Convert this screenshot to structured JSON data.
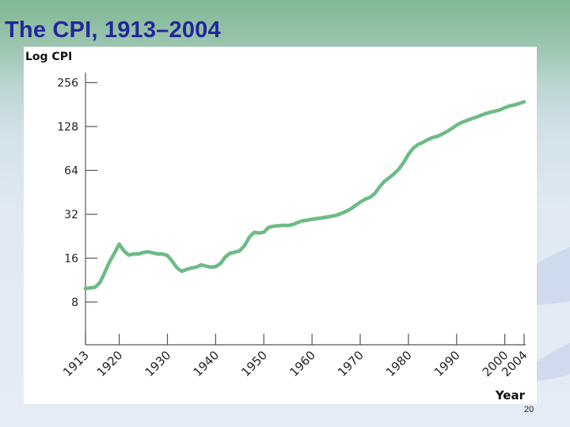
{
  "slide": {
    "title": "The CPI, 1913–2004",
    "page_number": "20"
  },
  "colors": {
    "line": "#6dbb85",
    "title": "#23279a",
    "axis": "#555555"
  },
  "chart_data": {
    "type": "line",
    "title": "The CPI, 1913–2004",
    "ylabel": "Log CPI",
    "xlabel": "Year",
    "yscale": "log2",
    "yticks": [
      8,
      16,
      32,
      64,
      128,
      256
    ],
    "ytick_labels": [
      "8",
      "16",
      "32",
      "64",
      "128",
      "256"
    ],
    "xticks": [
      1913,
      1920,
      1930,
      1940,
      1950,
      1960,
      1970,
      1980,
      1990,
      2000,
      2004
    ],
    "xtick_labels": [
      "1913",
      "1920",
      "1930",
      "1940",
      "1950",
      "1960",
      "1970",
      "1980",
      "1990",
      "2000",
      "2004"
    ],
    "xlim": [
      1913,
      2004
    ],
    "ylim": [
      5.6,
      300
    ],
    "series": [
      {
        "name": "CPI",
        "x": [
          1913,
          1914,
          1915,
          1916,
          1917,
          1918,
          1919,
          1920,
          1921,
          1922,
          1923,
          1924,
          1925,
          1926,
          1927,
          1928,
          1929,
          1930,
          1931,
          1932,
          1933,
          1934,
          1935,
          1936,
          1937,
          1938,
          1939,
          1940,
          1941,
          1942,
          1943,
          1944,
          1945,
          1946,
          1947,
          1948,
          1949,
          1950,
          1951,
          1952,
          1953,
          1954,
          1955,
          1956,
          1957,
          1958,
          1959,
          1960,
          1961,
          1962,
          1963,
          1964,
          1965,
          1966,
          1967,
          1968,
          1969,
          1970,
          1971,
          1972,
          1973,
          1974,
          1975,
          1976,
          1977,
          1978,
          1979,
          1980,
          1981,
          1982,
          1983,
          1984,
          1985,
          1986,
          1987,
          1988,
          1989,
          1990,
          1991,
          1992,
          1993,
          1994,
          1995,
          1996,
          1997,
          1998,
          1999,
          2000,
          2001,
          2002,
          2003,
          2004
        ],
        "y": [
          9.9,
          10.0,
          10.1,
          10.9,
          12.8,
          15.1,
          17.3,
          20.0,
          17.9,
          16.8,
          17.1,
          17.1,
          17.5,
          17.7,
          17.4,
          17.1,
          17.1,
          16.7,
          15.2,
          13.7,
          13.0,
          13.4,
          13.7,
          13.9,
          14.4,
          14.1,
          13.9,
          14.0,
          14.7,
          16.3,
          17.3,
          17.6,
          18.0,
          19.5,
          22.3,
          24.1,
          23.8,
          24.1,
          26.0,
          26.5,
          26.7,
          26.9,
          26.8,
          27.2,
          28.1,
          28.9,
          29.1,
          29.6,
          29.9,
          30.2,
          30.6,
          31.0,
          31.5,
          32.4,
          33.4,
          34.8,
          36.7,
          38.8,
          40.5,
          41.8,
          44.4,
          49.3,
          53.8,
          56.9,
          60.6,
          65.2,
          72.6,
          82.4,
          90.9,
          96.5,
          99.6,
          103.9,
          107.6,
          109.6,
          113.6,
          118.3,
          124.0,
          130.7,
          136.2,
          140.3,
          144.5,
          148.2,
          152.4,
          156.9,
          160.5,
          163.0,
          166.6,
          172.2,
          177.1,
          179.9,
          184.0,
          188.9
        ]
      }
    ]
  }
}
